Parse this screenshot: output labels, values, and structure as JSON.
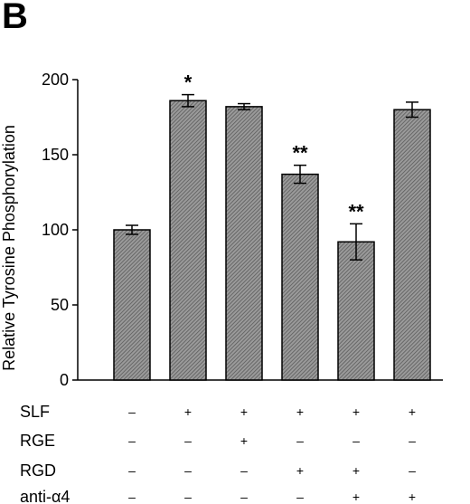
{
  "panel_label": "B",
  "chart_data": {
    "type": "bar",
    "title": "",
    "ylabel": "Relative Tyrosine Phosphorylation",
    "xlabel": "",
    "ylim": [
      0,
      200
    ],
    "yticks": [
      0,
      50,
      100,
      150,
      200
    ],
    "grid": false,
    "bar_pattern": "diagonal-hatch",
    "bar_color": "#7a7a7a",
    "values": [
      100,
      186,
      182,
      137,
      92,
      180
    ],
    "errors": [
      3,
      4,
      2,
      6,
      12,
      5
    ],
    "annotations": [
      "",
      "*",
      "",
      "**",
      "**",
      ""
    ],
    "conditions": [
      {
        "name": "SLF",
        "values": [
          "–",
          "+",
          "+",
          "+",
          "+",
          "+"
        ]
      },
      {
        "name": "RGE",
        "values": [
          "–",
          "–",
          "+",
          "–",
          "–",
          "–"
        ]
      },
      {
        "name": "RGD",
        "values": [
          "–",
          "–",
          "–",
          "+",
          "+",
          "–"
        ]
      },
      {
        "name": "anti-α4",
        "values": [
          "–",
          "–",
          "–",
          "–",
          "+",
          "+"
        ]
      }
    ]
  }
}
